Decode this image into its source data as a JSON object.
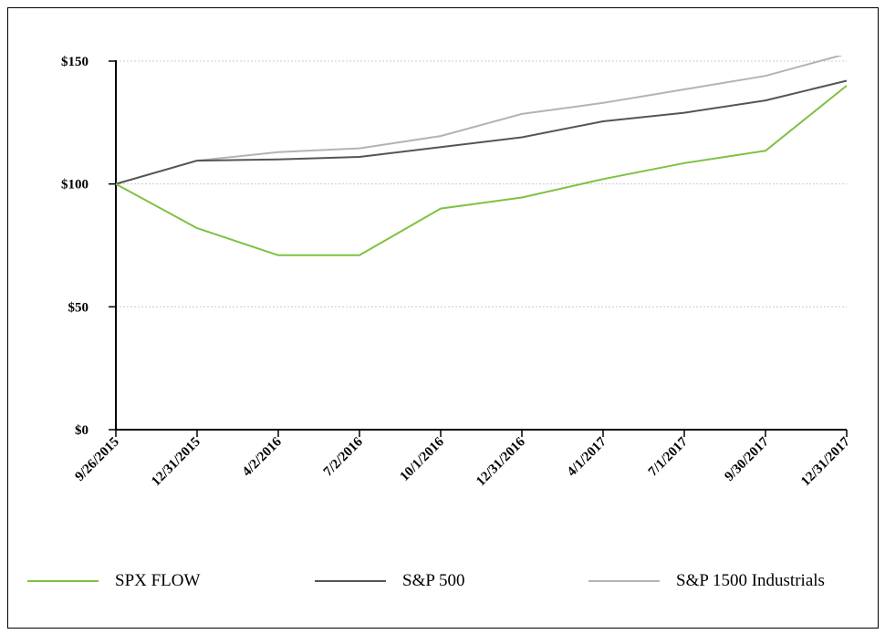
{
  "chart_data": {
    "type": "line",
    "categories": [
      "9/26/2015",
      "12/31/2015",
      "4/2/2016",
      "7/2/2016",
      "10/1/2016",
      "12/31/2016",
      "4/1/2017",
      "7/1/2017",
      "9/30/2017",
      "12/31/2017"
    ],
    "series": [
      {
        "name": "SPX FLOW",
        "color": "#7dc242",
        "values": [
          100,
          82,
          71,
          71,
          90,
          94.5,
          102,
          108.5,
          113.5,
          140
        ]
      },
      {
        "name": "S&P 500",
        "color": "#555555",
        "values": [
          100,
          109.5,
          110,
          111,
          115,
          119,
          125.5,
          129,
          134,
          142
        ]
      },
      {
        "name": "S&P 1500 Industrials",
        "color": "#b3b3b3",
        "values": [
          100,
          109.5,
          113,
          114.5,
          119.5,
          128.5,
          133,
          138.5,
          144,
          153
        ]
      }
    ],
    "yticks": [
      "$0",
      "$50",
      "$100",
      "$150"
    ],
    "ytick_values": [
      0,
      50,
      100,
      150
    ],
    "ylim": [
      0,
      150
    ],
    "grid": true,
    "legend_position": "bottom"
  }
}
